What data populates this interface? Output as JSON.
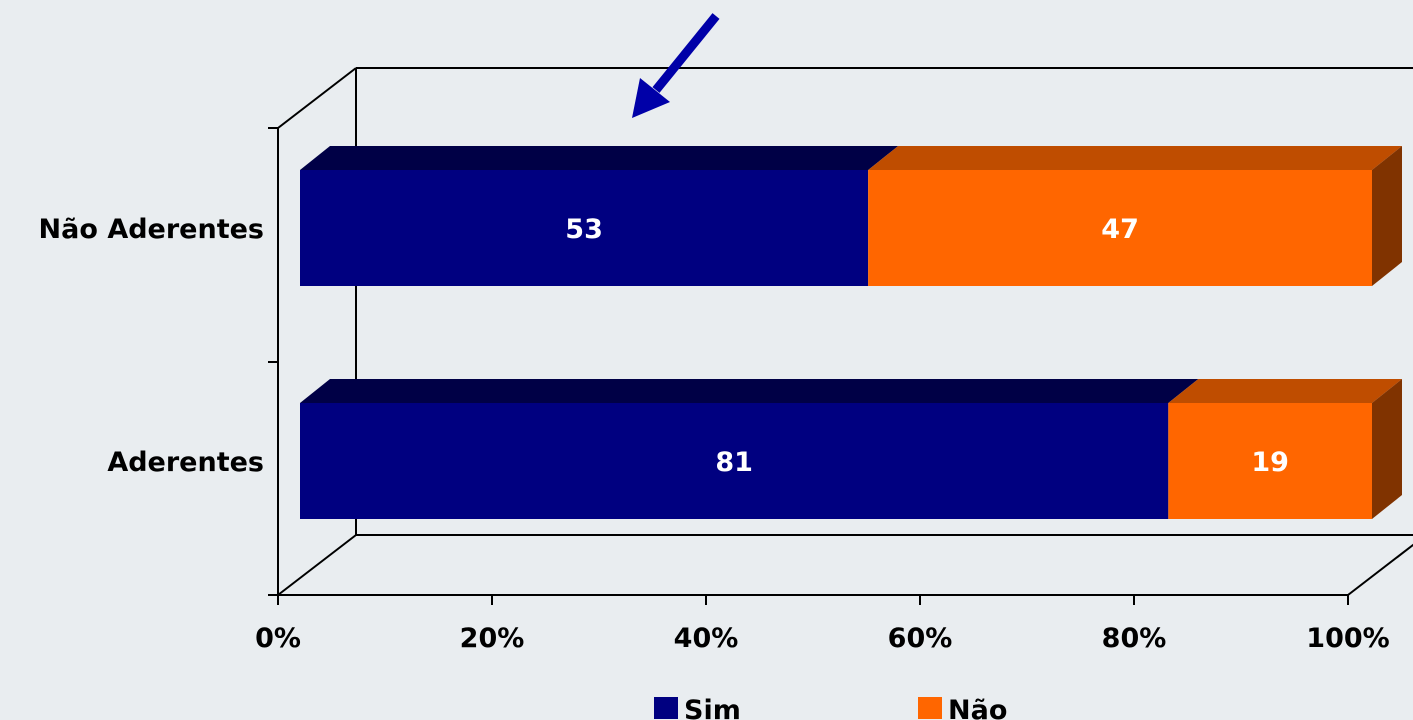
{
  "chart_data": {
    "type": "bar",
    "orientation": "horizontal",
    "stacked": "percent",
    "three_d": true,
    "categories": [
      "Não Aderentes",
      "Aderentes"
    ],
    "series": [
      {
        "name": "Sim",
        "values": [
          53,
          81
        ],
        "color": "#000080"
      },
      {
        "name": "Não",
        "values": [
          47,
          19
        ],
        "color": "#ff6600"
      }
    ],
    "data_labels": [
      [
        "53",
        "81"
      ],
      [
        "47",
        "19"
      ]
    ],
    "xlim": [
      0,
      100
    ],
    "xticks": [
      0,
      20,
      40,
      60,
      80,
      100
    ],
    "xtick_labels": [
      "0%",
      "20%",
      "40%",
      "60%",
      "80%",
      "100%"
    ],
    "grid": false,
    "legend_position": "bottom",
    "annotation": "arrow pointing to the Não Aderentes bar",
    "colors": {
      "background": "#e9edf0",
      "arrow": "#0000a8"
    }
  }
}
